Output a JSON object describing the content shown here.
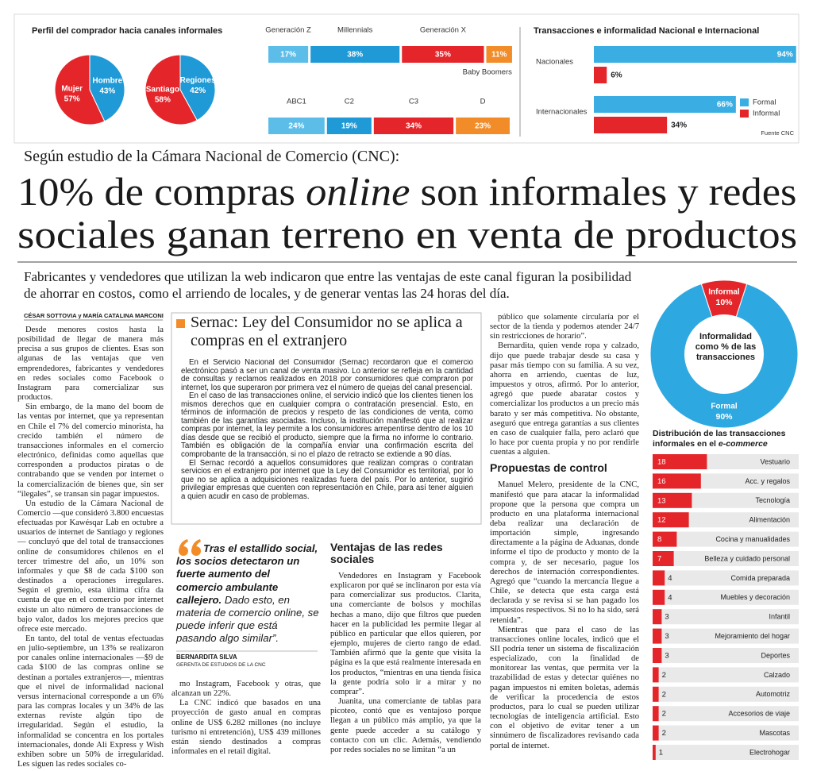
{
  "infographic": {
    "buyer_profile": {
      "title": "Perfil del comprador hacia canales informales",
      "pies": [
        {
          "slices": [
            {
              "name": "Mujer",
              "value": 57,
              "label": "57%",
              "color": "#e4262b"
            },
            {
              "name": "Hombre",
              "value": 43,
              "label": "43%",
              "color": "#1f9ad6"
            }
          ]
        },
        {
          "slices": [
            {
              "name": "Santiago",
              "value": 58,
              "label": "58%",
              "color": "#e4262b"
            },
            {
              "name": "Regiones",
              "value": 42,
              "label": "42%",
              "color": "#1f9ad6"
            }
          ]
        }
      ]
    },
    "generation": [
      {
        "name": "Generación Z",
        "value": 17,
        "label": "17%",
        "color": "#5dbde9"
      },
      {
        "name": "Millennials",
        "value": 38,
        "label": "38%",
        "color": "#1f9ad6"
      },
      {
        "name": "Generación X",
        "value": 35,
        "label": "35%",
        "color": "#e4262b"
      },
      {
        "name": "Baby Boomers",
        "value": 11,
        "label": "11%",
        "color": "#f28c28"
      }
    ],
    "socioeconomic": [
      {
        "name": "ABC1",
        "value": 24,
        "label": "24%",
        "color": "#5dbde9"
      },
      {
        "name": "C2",
        "value": 19,
        "label": "19%",
        "color": "#1f9ad6"
      },
      {
        "name": "C3",
        "value": 34,
        "label": "34%",
        "color": "#e4262b"
      },
      {
        "name": "D",
        "value": 23,
        "label": "23%",
        "color": "#f28c28"
      }
    ],
    "transactions": {
      "title": "Transacciones e informalidad Nacional e Internacional",
      "groups": [
        {
          "name": "Nacionales",
          "formal": {
            "value": 94,
            "label": "94%"
          },
          "informal": {
            "value": 6,
            "label": "6%"
          }
        },
        {
          "name": "Internacionales",
          "formal": {
            "value": 66,
            "label": "66%"
          },
          "informal": {
            "value": 34,
            "label": "34%"
          }
        }
      ],
      "legend": [
        {
          "name": "Formal",
          "color": "#3aaee3"
        },
        {
          "name": "Informal",
          "color": "#e4262b"
        }
      ],
      "source": "Fuente CNC"
    }
  },
  "article": {
    "kicker": "Según estudio de la Cámara Nacional de Comercio (CNC):",
    "headline": {
      "line1_start": "10% de compras ",
      "line1_italic": "online",
      "line1_end": " son informales y redes",
      "line2": "sociales ganan terreno en venta de productos"
    },
    "deck": "Fabricantes y vendedores que utilizan la web indicaron que entre las ventajas de este canal figuran la posibilidad de ahorrar en costos, como el arriendo de locales, y de generar ventas las 24 horas del día.",
    "byline": "CÉSAR SOTTOVIA y MARÍA CATALINA MARCONI",
    "column1": [
      "Desde menores costos hasta la posibilidad de llegar de manera más precisa a sus grupos de clientes. Esas son algunas de las ventajas que ven emprendedores, fabricantes y vendedores en redes sociales como Facebook o Instagram para comercializar sus productos.",
      "Sin embargo, de la mano del boom de las ventas por internet, que ya representan en Chile el 7% del comercio minorista, ha crecido también el número de transacciones informales en el comercio electrónico, definidas como aquellas que corresponden a productos piratas o de contrabando que se venden por internet o la comercialización de bienes que, sin ser “ilegales”, se transan sin pagar impuestos.",
      "Un estudio de la Cámara Nacional de Comercio —que consideró 3.800 encuestas efectuadas por Kawésqar Lab en octubre a usuarios de internet de Santiago y regiones— concluyó que del total de transacciones online de consumidores chilenos en el tercer trimestre del año, un 10% son informales y que $8 de cada $100 son destinados a operaciones irregulares. Según el gremio, esta última cifra da cuenta de que en el comercio por internet existe un alto número de transacciones de bajo valor, dados los mejores precios que ofrece este mercado.",
      "En tanto, del total de ventas efectuadas en julio-septiembre, un 13% se realizaron por canales online internacionales —$9 de cada $100 de las compras online se destinan a portales extranjeros—, mientras que el nivel de informalidad nacional versus internacional corresponde a un 6% para las compras locales y un 34% de las externas reviste algún tipo de irregularidad. Según el estudio, la informalidad se concentra en los portales internacionales, donde Ali Express y Wish exhiben sobre un 50% de irregularidad. Les siguen las redes sociales co-"
    ],
    "column2": [
      "mo Instagram, Facebook y otras, que alcanzan un 22%.",
      "La CNC indicó que basados en una proyección de gasto anual en compras online de US$ 6.282 millones (no incluye turismo ni entretención), US$ 439 millones están siendo destinados a compras informales en el retail digital."
    ],
    "column3_heading": "Ventajas de las redes sociales",
    "column3": [
      "Vendedores en Instagram y Facebook explicaron por qué se inclinaron por esta vía para comercializar sus productos. Clarita, una comerciante de bolsos y mochilas hechas a mano, dijo que filtros que pueden hacer en la publicidad les permite llegar al público en particular que ellos quieren, por ejemplo, mujeres de cierto rango de edad. También afirmó que la gente que visita la página es la que está realmente interesada en los productos, “mientras en una tienda física la gente podría solo ir a mirar y no comprar”.",
      "Juanita, una comerciante de tablas para picoteo, contó que es ventajoso porque llegan a un público más amplio, ya que la gente puede acceder a su catálogo y contacto con un clic. Además, vendiendo por redes sociales no se limitan “a un"
    ],
    "column4": [
      "público que solamente circularía por el sector de la tienda y podemos atender 24/7 sin restricciones de horario”.",
      "Bernardita, quien vende ropa y calzado, dijo que puede trabajar desde su casa y pasar más tiempo con su familia. A su vez, ahorra en arriendo, cuentas de luz, impuestos y otros, afirmó. Por lo anterior, agregó que puede abaratar costos y comercializar los productos a un precio más barato y ser más competitiva. No obstante, aseguró que entrega garantías a sus clientes en caso de cualquier falla, pero aclaró que lo hace por cuenta propia y no por rendirle cuentas a alguien."
    ],
    "column4_heading": "Propuestas de control",
    "column4_after": [
      "Manuel Melero, presidente de la CNC, manifestó que para atacar la informalidad propone que la persona que compra un producto en una plataforma internacional deba realizar una declaración de importación simple, ingresando directamente a la página de Aduanas, donde informe el tipo de producto y monto de la compra y, de ser necesario, pague los derechos de internación correspondientes. Agregó que “cuando la mercancía llegue a Chile, se detecta que esta carga está declarada y se revisa si se han pagado los impuestos respectivos. Si no lo ha sido, será retenida”.",
      "Mientras que para el caso de las transacciones online locales, indicó que el SII podría tener un sistema de fiscalización especializado, con la finalidad de monitorear las ventas, que permita ver la trazabilidad de estas y detectar quiénes no pagan impuestos ni emiten boletas, además de verificar la procedencia de estos productos, para lo cual se pueden utilizar tecnologías de inteligencia artificial. Esto con el objetivo de evitar tener a un sinnúmero de fiscalizadores revisando cada portal de internet."
    ]
  },
  "sidebar": {
    "title": "Sernac: Ley del Consumidor no se aplica a compras en el extranjero",
    "paragraphs": [
      "En el Servicio Nacional del Consumidor (Sernac) recordaron que el comercio electrónico pasó a ser un canal de venta masivo. Lo anterior se refleja en la cantidad de consultas y reclamos realizados en 2018 por consumidores que compraron por internet, los que superaron por primera vez el número de quejas del canal presencial.",
      "En el caso de las transacciones online, el servicio indicó que los clientes tienen los mismos derechos que en cualquier compra o contratación presencial. Esto, en términos de información de precios y respeto de las condiciones de venta, como también de las garantías asociadas. Incluso, la institución manifestó que al realizar compras por internet, la ley permite a los consumidores arrepentirse dentro de los 10 días desde que se recibió el producto, siempre que la firma no informe lo contrario. También es obligación de la compañía enviar una confirmación escrita del comprobante de la transacción, si no el plazo de retracto se extiende a 90 días.",
      "El Sernac recordó a aquellos consumidores que realizan compras o contratan servicios en el extranjero por internet que la Ley del Consumidor es territorial, por lo que no se aplica a adquisiciones realizadas fuera del país. Por lo anterior, sugirió privilegiar empresas que cuenten con representación en Chile, para así tener alguien a quien acudir en caso de problemas."
    ]
  },
  "quote": {
    "bold": "Tras el estallido social, los socios detectaron un fuerte aumento del comercio ambulante callejero.",
    "rest": " Dado esto, en materia de comercio online, se puede inferir que está pasando algo similar”.",
    "author": "BERNARDITA SILVA",
    "role": "GERENTA DE ESTUDIOS DE LA CNC"
  },
  "informality_donut": {
    "title": "Informalidad como % de las transacciones",
    "slices": [
      {
        "name": "Informal",
        "value": 10,
        "label": "10%",
        "color": "#e4262b"
      },
      {
        "name": "Formal",
        "value": 90,
        "label": "90%",
        "color": "#2ea8e0"
      }
    ]
  },
  "distribution": {
    "title": "Distribución de las transacciones informales en el",
    "title_italic": "e-commerce",
    "color": "#e4262b",
    "bars": [
      {
        "name": "Vestuario",
        "value": 18
      },
      {
        "name": "Acc. y regalos",
        "value": 16
      },
      {
        "name": "Tecnología",
        "value": 13
      },
      {
        "name": "Alimentación",
        "value": 12
      },
      {
        "name": "Cocina y manualidades",
        "value": 8
      },
      {
        "name": "Belleza y cuidado personal",
        "value": 7
      },
      {
        "name": "Comida preparada",
        "value": 4
      },
      {
        "name": "Muebles y decoración",
        "value": 4
      },
      {
        "name": "Infantil",
        "value": 3
      },
      {
        "name": "Mejoramiento del hogar",
        "value": 3
      },
      {
        "name": "Deportes",
        "value": 3
      },
      {
        "name": "Calzado",
        "value": 2
      },
      {
        "name": "Automotriz",
        "value": 2
      },
      {
        "name": "Accesorios de viaje",
        "value": 2
      },
      {
        "name": "Mascotas",
        "value": 2
      },
      {
        "name": "Electrohogar",
        "value": 1
      }
    ]
  }
}
